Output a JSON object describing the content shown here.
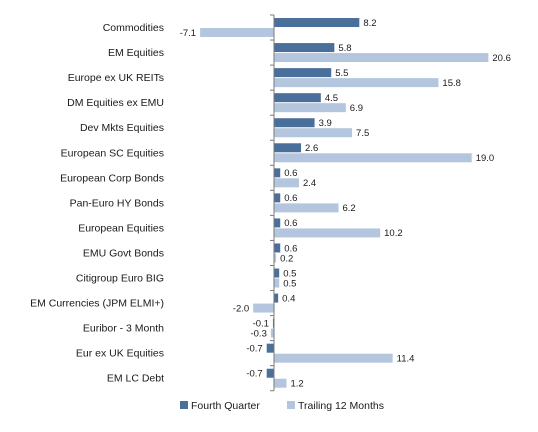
{
  "chart_data": {
    "type": "bar",
    "orientation": "horizontal",
    "categories": [
      "Commodities",
      "EM Equities",
      "Europe ex UK REITs",
      "DM Equities ex EMU",
      "Dev Mkts Equities",
      "European SC Equities",
      "European Corp Bonds",
      "Pan-Euro HY Bonds",
      "European Equities",
      "EMU Govt Bonds",
      "Citigroup Euro BIG",
      "EM Currencies (JPM ELMI+)",
      "Euribor - 3 Month",
      "Eur ex UK Equities",
      "EM LC Debt"
    ],
    "series": [
      {
        "name": "Fourth Quarter",
        "color": "#4a6f9a",
        "values": [
          8.2,
          5.8,
          5.5,
          4.5,
          3.9,
          2.6,
          0.6,
          0.6,
          0.6,
          0.6,
          0.5,
          0.4,
          -0.1,
          -0.7,
          -0.7
        ],
        "labels": [
          "8.2",
          "5.8",
          "5.5",
          "4.5",
          "3.9",
          "2.6",
          "0.6",
          "0.6",
          "0.6",
          "0.6",
          "0.5",
          "0.4",
          "-0.1",
          "-0.7",
          "-0.7"
        ]
      },
      {
        "name": "Trailing 12 Months",
        "color": "#b3c6dd",
        "values": [
          -7.1,
          20.6,
          15.8,
          6.9,
          7.5,
          19.0,
          2.4,
          6.2,
          10.2,
          0.2,
          0.5,
          -2.0,
          -0.3,
          11.4,
          1.2
        ],
        "labels": [
          "-7.1",
          "20.6",
          "15.8",
          "6.9",
          "7.5",
          "19.0",
          "2.4",
          "6.2",
          "10.2",
          "0.2",
          "0.5",
          "-2.0",
          "-0.3",
          "11.4",
          "1.2"
        ]
      }
    ],
    "xlim": [
      -9.8,
      24.6
    ],
    "grid": false,
    "legend": "bottom",
    "title": "",
    "xlabel": "",
    "ylabel": ""
  }
}
